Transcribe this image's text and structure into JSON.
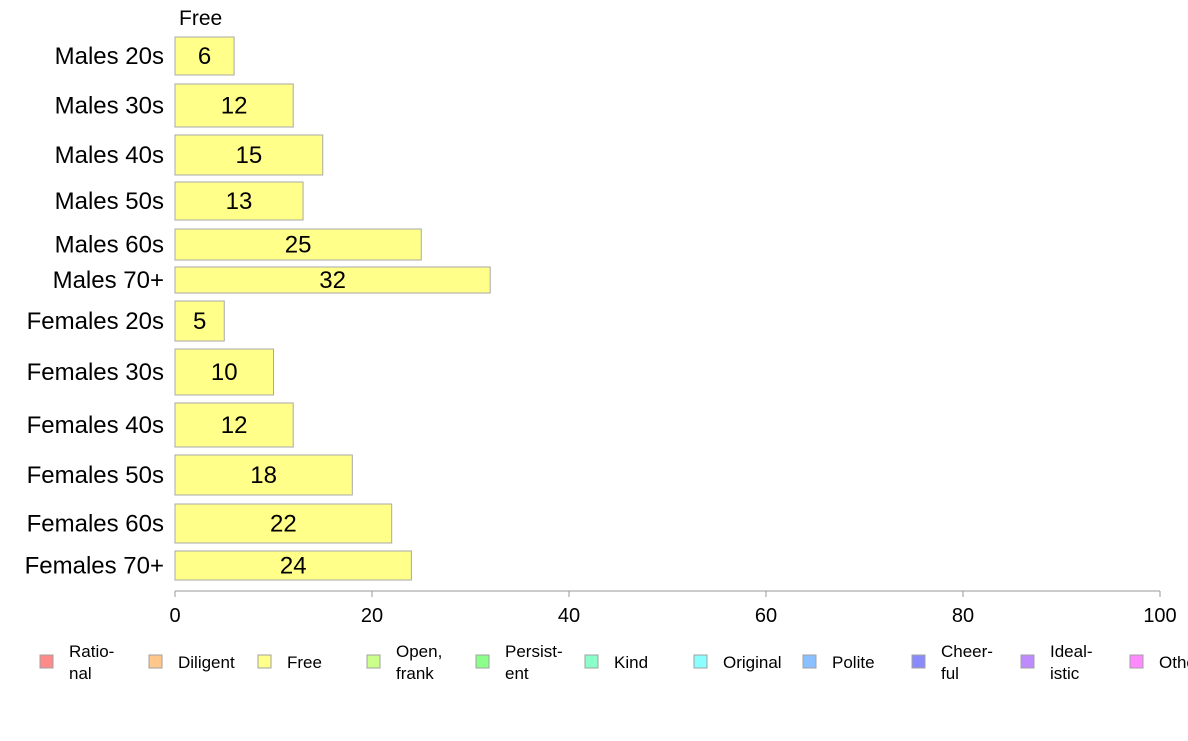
{
  "chart_data": {
    "type": "bar",
    "orientation": "horizontal",
    "panel_title": "Free",
    "categories": [
      "Males 20s",
      "Males 30s",
      "Males 40s",
      "Males 50s",
      "Males 60s",
      "Males 70+",
      "Females 20s",
      "Females 30s",
      "Females 40s",
      "Females 50s",
      "Females 60s",
      "Females 70+"
    ],
    "series": [
      {
        "name": "Free",
        "values": [
          6,
          12,
          15,
          13,
          25,
          32,
          5,
          10,
          12,
          18,
          22,
          24
        ]
      }
    ],
    "xlim": [
      0,
      100
    ],
    "xticks": [
      0,
      20,
      40,
      60,
      80,
      100
    ],
    "grid": false,
    "legend": {
      "placement": "bottom",
      "items": [
        {
          "label_lines": [
            "Ratio-",
            "nal"
          ],
          "color": "#ff8a8a"
        },
        {
          "label_lines": [
            "Diligent"
          ],
          "color": "#ffc88a"
        },
        {
          "label_lines": [
            "Free"
          ],
          "color": "#ffff8a"
        },
        {
          "label_lines": [
            "Open,",
            "frank"
          ],
          "color": "#caff8a"
        },
        {
          "label_lines": [
            "Persist-",
            "ent"
          ],
          "color": "#8aff8a"
        },
        {
          "label_lines": [
            "Kind"
          ],
          "color": "#8affca"
        },
        {
          "label_lines": [
            "Original"
          ],
          "color": "#8affff"
        },
        {
          "label_lines": [
            "Polite"
          ],
          "color": "#8ac0ff"
        },
        {
          "label_lines": [
            "Cheer-",
            "ful"
          ],
          "color": "#8a8aff"
        },
        {
          "label_lines": [
            "Ideal-",
            "istic"
          ],
          "color": "#c08aff"
        },
        {
          "label_lines": [
            "Other"
          ],
          "color": "#ff8aff"
        }
      ]
    },
    "bar_color": "#ffff8a",
    "bar_stroke": "#a8a8a8"
  }
}
